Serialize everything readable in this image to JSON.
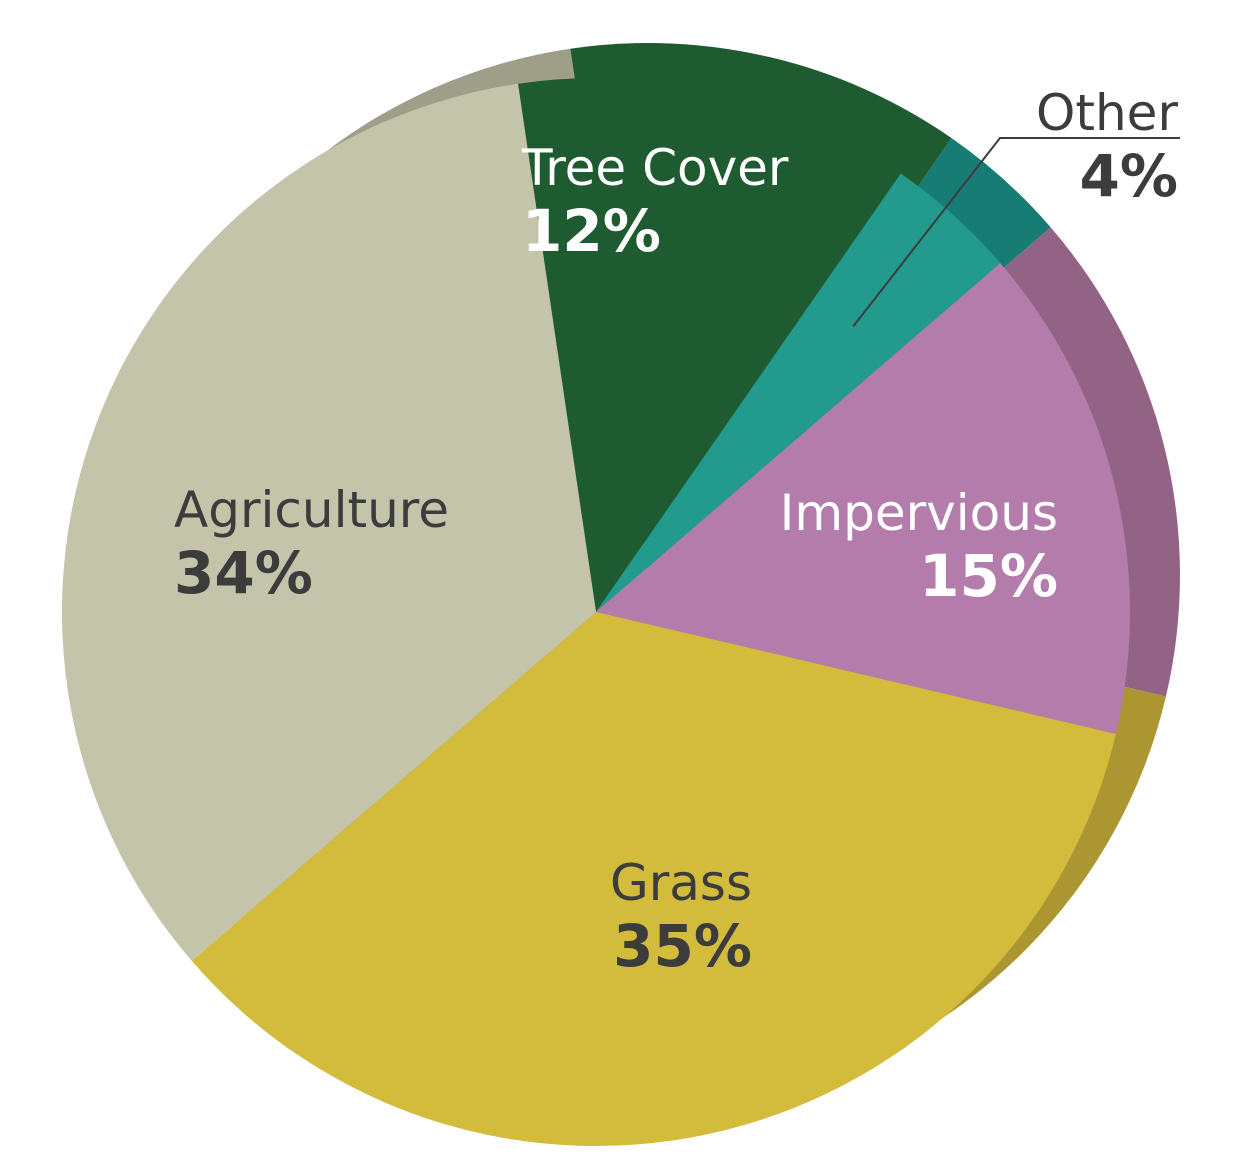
{
  "chart_data": {
    "type": "pie",
    "slices": [
      {
        "label": "Tree Cover",
        "value": 12,
        "value_label": "12%",
        "color": "#1e5b30",
        "side_color": "#1e5b30",
        "text_color": "#ffffff"
      },
      {
        "label": "Other",
        "value": 4,
        "value_label": "4%",
        "color": "#229a8d",
        "side_color": "#177c74",
        "text_color": "#3c3c3c"
      },
      {
        "label": "Impervious",
        "value": 15,
        "value_label": "15%",
        "color": "#b47caa",
        "side_color": "#926384",
        "text_color": "#ffffff"
      },
      {
        "label": "Grass",
        "value": 35,
        "value_label": "35%",
        "color": "#d3bb3c",
        "side_color": "#ab9631",
        "text_color": "#3c3c3c"
      },
      {
        "label": "Agriculture",
        "value": 34,
        "value_label": "34%",
        "color": "#c4c4aa",
        "side_color": "#9e9e89",
        "text_color": "#3c3c3c"
      }
    ]
  }
}
